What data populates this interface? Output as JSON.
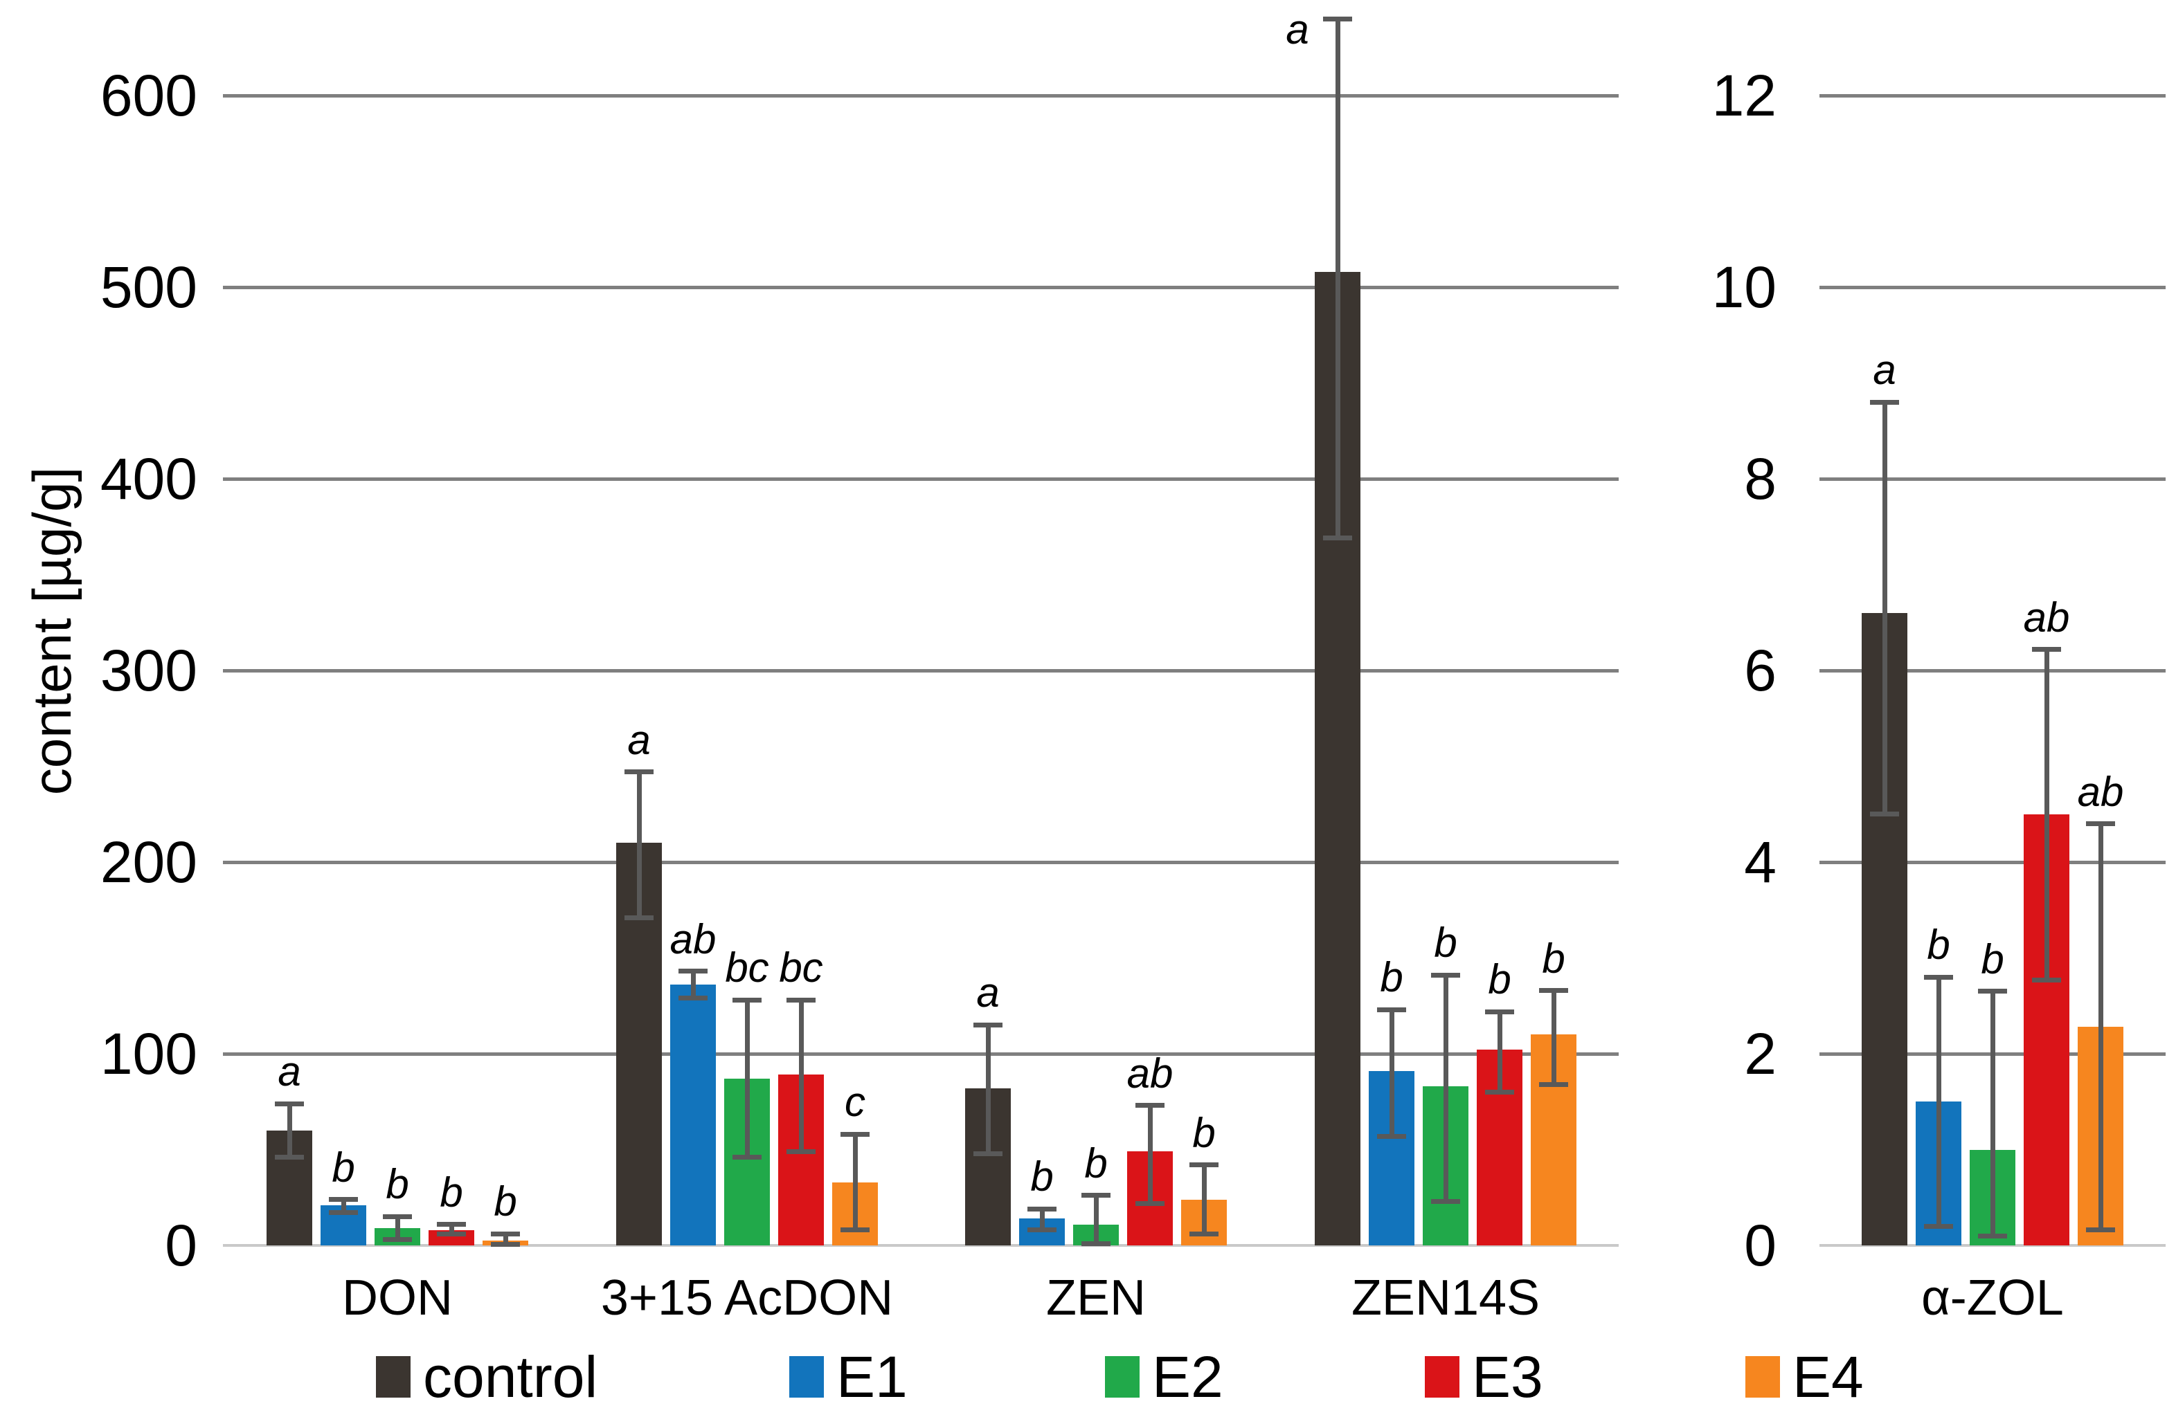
{
  "figure": {
    "background": "#ffffff"
  },
  "chart_data": {
    "type": "bar",
    "title": "",
    "ylabel": "content [µg/g]",
    "xlabel": "",
    "grid": true,
    "legend_position": "bottom",
    "error_bar_color": "#595959",
    "gridline_color": "#7f7f7f",
    "baseline_color": "#c9c9c9",
    "series": [
      {
        "name": "control",
        "color": "#3b3530"
      },
      {
        "name": "E1",
        "color": "#1274bc"
      },
      {
        "name": "E2",
        "color": "#21a94a"
      },
      {
        "name": "E3",
        "color": "#da1418"
      },
      {
        "name": "E4",
        "color": "#f6861f"
      }
    ],
    "panels": [
      {
        "side": "left",
        "ylim": [
          0,
          600
        ],
        "yticks": [
          0,
          100,
          200,
          300,
          400,
          500,
          600
        ],
        "groups": [
          {
            "category": "DON",
            "bars": [
              {
                "series": "control",
                "value": 60,
                "err_lo": 46,
                "err_hi": 74,
                "letter": "a"
              },
              {
                "series": "E1",
                "value": 21,
                "err_lo": 17,
                "err_hi": 24,
                "letter": "b"
              },
              {
                "series": "E2",
                "value": 9,
                "err_lo": 3,
                "err_hi": 15,
                "letter": "b"
              },
              {
                "series": "E3",
                "value": 8,
                "err_lo": 6,
                "err_hi": 11,
                "letter": "b"
              },
              {
                "series": "E4",
                "value": 2.5,
                "err_lo": 0.6,
                "err_hi": 6,
                "letter": "b"
              }
            ]
          },
          {
            "category": "3+15 AcDON",
            "bars": [
              {
                "series": "control",
                "value": 210,
                "err_lo": 171,
                "err_hi": 247,
                "letter": "a"
              },
              {
                "series": "E1",
                "value": 136,
                "err_lo": 129,
                "err_hi": 143,
                "letter": "ab"
              },
              {
                "series": "E2",
                "value": 87,
                "err_lo": 46,
                "err_hi": 128,
                "letter": "bc"
              },
              {
                "series": "E3",
                "value": 89,
                "err_lo": 49,
                "err_hi": 128,
                "letter": "bc"
              },
              {
                "series": "E4",
                "value": 33,
                "err_lo": 8,
                "err_hi": 58,
                "letter": "c"
              }
            ]
          },
          {
            "category": "ZEN",
            "bars": [
              {
                "series": "control",
                "value": 82,
                "err_lo": 48,
                "err_hi": 115,
                "letter": "a"
              },
              {
                "series": "E1",
                "value": 14,
                "err_lo": 8,
                "err_hi": 19,
                "letter": "b"
              },
              {
                "series": "E2",
                "value": 11,
                "err_lo": 1,
                "err_hi": 26,
                "letter": "b"
              },
              {
                "series": "E3",
                "value": 49,
                "err_lo": 22,
                "err_hi": 73,
                "letter": "ab"
              },
              {
                "series": "E4",
                "value": 24,
                "err_lo": 6,
                "err_hi": 42,
                "letter": "b"
              }
            ]
          },
          {
            "category": "ZEN14S",
            "bars": [
              {
                "series": "control",
                "value": 508,
                "err_lo": 369,
                "err_hi": 640,
                "letter": "a",
                "letter_offset": [
                  -58,
                  62
                ]
              },
              {
                "series": "E1",
                "value": 91,
                "err_lo": 57,
                "err_hi": 123,
                "letter": "b"
              },
              {
                "series": "E2",
                "value": 83,
                "err_lo": 23,
                "err_hi": 141,
                "letter": "b"
              },
              {
                "series": "E3",
                "value": 102,
                "err_lo": 80,
                "err_hi": 122,
                "letter": "b"
              },
              {
                "series": "E4",
                "value": 110,
                "err_lo": 84,
                "err_hi": 133,
                "letter": "b"
              }
            ]
          }
        ]
      },
      {
        "side": "right",
        "ylim": [
          0,
          12
        ],
        "yticks": [
          0,
          2,
          4,
          6,
          8,
          10,
          12
        ],
        "groups": [
          {
            "category": "α-ZOL",
            "bars": [
              {
                "series": "control",
                "value": 6.6,
                "err_lo": 4.5,
                "err_hi": 8.8,
                "letter": "a"
              },
              {
                "series": "E1",
                "value": 1.5,
                "err_lo": 0.2,
                "err_hi": 2.8,
                "letter": "b"
              },
              {
                "series": "E2",
                "value": 1.0,
                "err_lo": 0.1,
                "err_hi": 2.65,
                "letter": "b"
              },
              {
                "series": "E3",
                "value": 4.5,
                "err_lo": 2.77,
                "err_hi": 6.22,
                "letter": "ab"
              },
              {
                "series": "E4",
                "value": 2.28,
                "err_lo": 0.16,
                "err_hi": 4.4,
                "letter": "ab"
              }
            ]
          }
        ]
      }
    ],
    "legend": [
      {
        "label": "control"
      },
      {
        "label": "E1"
      },
      {
        "label": "E2"
      },
      {
        "label": "E3"
      },
      {
        "label": "E4"
      }
    ]
  }
}
